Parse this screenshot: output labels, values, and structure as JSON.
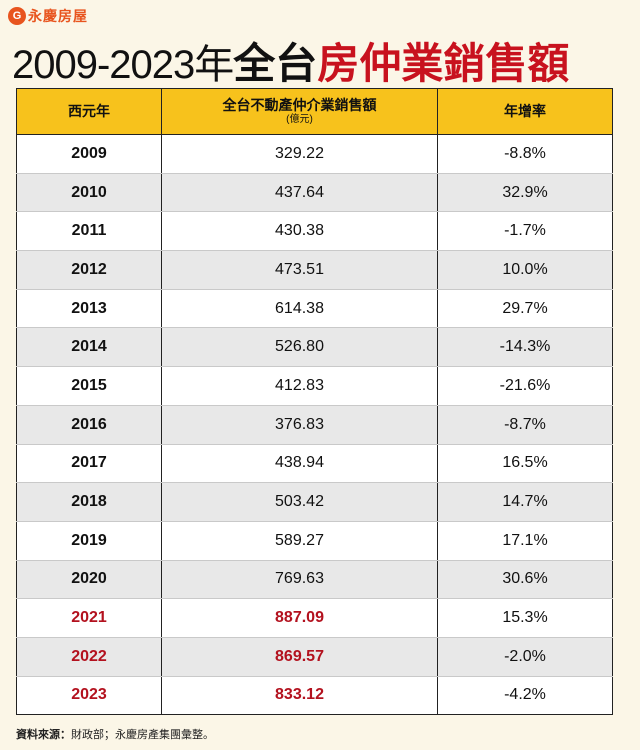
{
  "brand": {
    "icon_glyph": "G",
    "name": "永慶房屋"
  },
  "title": {
    "years": "2009-2023年",
    "part1": "全台",
    "part2": "房仲業銷售額"
  },
  "table": {
    "headers": {
      "year": "西元年",
      "sales": "全台不動產仲介業銷售額",
      "sales_unit": "(億元)",
      "growth": "年增率"
    },
    "rows": [
      {
        "year": "2009",
        "sales": "329.22",
        "growth": "-8.8%"
      },
      {
        "year": "2010",
        "sales": "437.64",
        "growth": "32.9%"
      },
      {
        "year": "2011",
        "sales": "430.38",
        "growth": "-1.7%"
      },
      {
        "year": "2012",
        "sales": "473.51",
        "growth": "10.0%"
      },
      {
        "year": "2013",
        "sales": "614.38",
        "growth": "29.7%"
      },
      {
        "year": "2014",
        "sales": "526.80",
        "growth": "-14.3%"
      },
      {
        "year": "2015",
        "sales": "412.83",
        "growth": "-21.6%"
      },
      {
        "year": "2016",
        "sales": "376.83",
        "growth": "-8.7%"
      },
      {
        "year": "2017",
        "sales": "438.94",
        "growth": "16.5%"
      },
      {
        "year": "2018",
        "sales": "503.42",
        "growth": "14.7%"
      },
      {
        "year": "2019",
        "sales": "589.27",
        "growth": "17.1%"
      },
      {
        "year": "2020",
        "sales": "769.63",
        "growth": "30.6%"
      },
      {
        "year": "2021",
        "sales": "887.09",
        "growth": "15.3%",
        "highlight": true
      },
      {
        "year": "2022",
        "sales": "869.57",
        "growth": "-2.0%",
        "highlight": true
      },
      {
        "year": "2023",
        "sales": "833.12",
        "growth": "-4.2%",
        "highlight": true
      }
    ]
  },
  "footer": {
    "label": "資料來源：",
    "text": "財政部；永慶房產集團彙整。"
  },
  "colors": {
    "accent_orange": "#e8541e",
    "title_red": "#c8121e",
    "header_yellow": "#f7c21c",
    "highlight_red": "#b3111e"
  }
}
